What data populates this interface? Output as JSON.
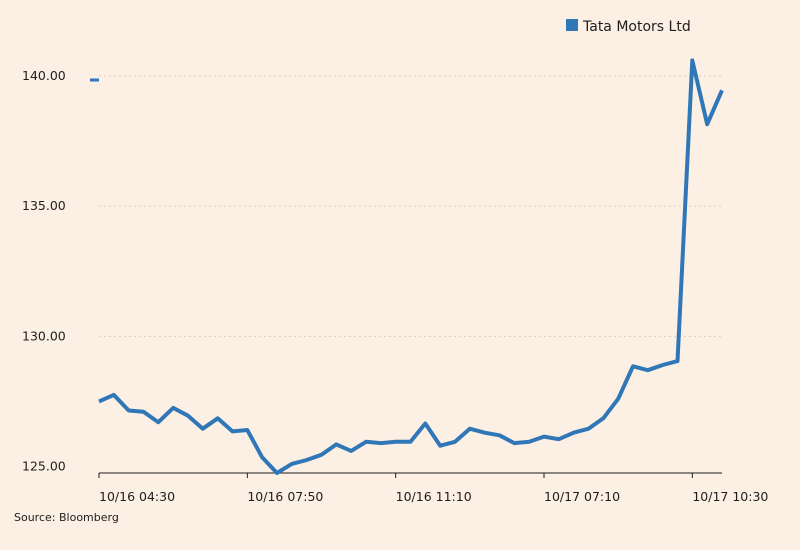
{
  "chart_data": {
    "type": "line",
    "title": "",
    "xlabel": "",
    "ylabel": "",
    "ylim": [
      124.75,
      141.0
    ],
    "yticks": [
      125,
      130,
      135,
      140
    ],
    "ytick_labels": [
      "125.00",
      "130.00",
      "135.00",
      "140.00"
    ],
    "xtick_labels": [
      {
        "index": 0,
        "label": "10/16 04:30"
      },
      {
        "index": 10,
        "label": "10/16 07:50"
      },
      {
        "index": 20,
        "label": "10/16 11:10"
      },
      {
        "index": 30,
        "label": "10/17 07:10"
      },
      {
        "index": 40,
        "label": "10/17 10:30"
      }
    ],
    "grid": true,
    "legend_position": "top-right",
    "colors": {
      "background": "#fcefe4",
      "series": "#2f77b6",
      "grid": "#d9cfc5",
      "axis": "#1e1e1e"
    },
    "series": [
      {
        "name": "Tata Motors Ltd",
        "color": "#2f77b6",
        "values": [
          127.5,
          127.75,
          127.15,
          127.1,
          126.7,
          127.25,
          126.95,
          126.45,
          126.85,
          126.35,
          126.4,
          125.35,
          124.75,
          125.1,
          125.25,
          125.45,
          125.85,
          125.6,
          125.95,
          125.9,
          125.95,
          125.95,
          126.65,
          125.8,
          125.95,
          126.45,
          126.3,
          126.2,
          125.9,
          125.95,
          126.15,
          126.05,
          126.3,
          126.45,
          126.85,
          127.6,
          128.85,
          128.7,
          128.9,
          129.05,
          140.6,
          138.15,
          139.45
        ]
      }
    ],
    "legend": {
      "label": "Tata Motors Ltd"
    },
    "source": "Source: Bloomberg"
  }
}
